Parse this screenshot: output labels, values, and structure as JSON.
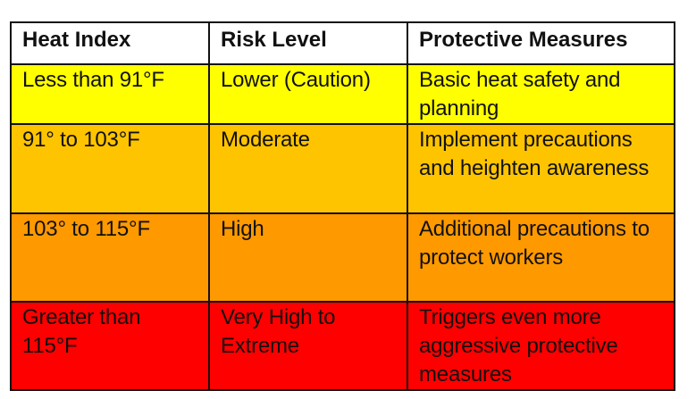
{
  "table": {
    "headers": [
      "Heat Index",
      "Risk Level",
      "Protective Measures"
    ],
    "rows": [
      {
        "heat_index": "Less than 91°F",
        "risk_level": "Lower (Caution)",
        "measures": "Basic heat safety and planning",
        "color": "#ffff00"
      },
      {
        "heat_index": "91° to 103°F",
        "risk_level": "Moderate",
        "measures": "Implement precautions and heighten awareness",
        "color": "#ffc400"
      },
      {
        "heat_index": "103° to 115°F",
        "risk_level": "High",
        "measures": "Additional precautions to protect workers",
        "color": "#ff9900"
      },
      {
        "heat_index": "Greater than 115°F",
        "risk_level": "Very High to Extreme",
        "measures": "Triggers even more aggressive protective measures",
        "color": "#ff0000"
      }
    ]
  }
}
